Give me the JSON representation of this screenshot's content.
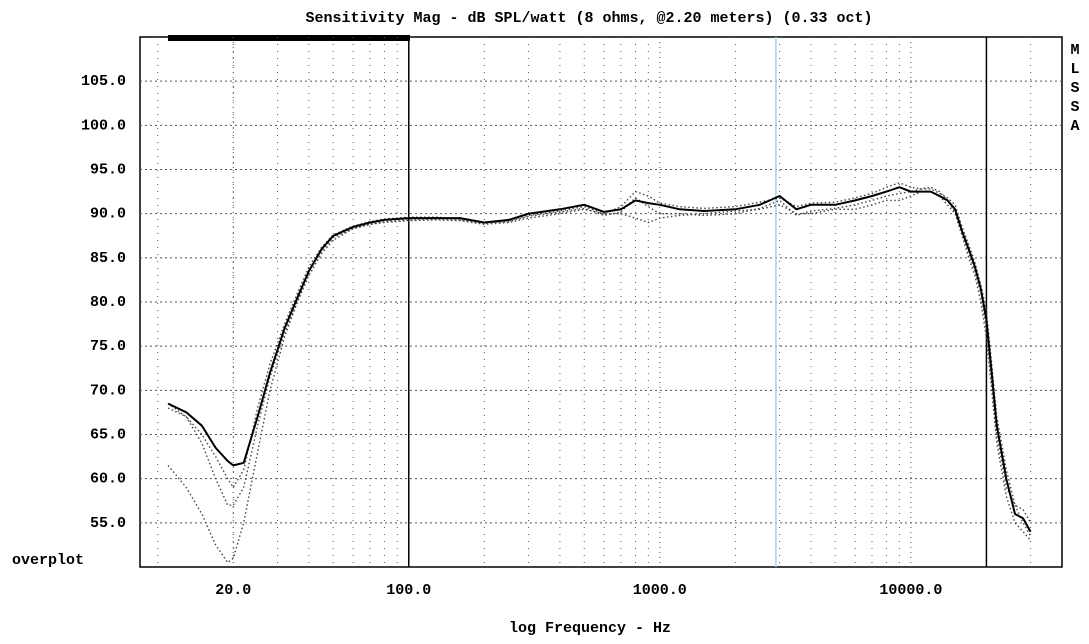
{
  "chart_data": {
    "type": "line",
    "title": "Sensitivity Mag - dB SPL/watt (8 ohms, @2.20 meters) (0.33 oct)",
    "xlabel": "log Frequency - Hz",
    "side_label": [
      "M",
      "L",
      "S",
      "S",
      "A"
    ],
    "corner_label": "overplot",
    "xscale": "log",
    "xlim": [
      8.5,
      40000
    ],
    "ylim": [
      50,
      110
    ],
    "xticks": [
      {
        "value": 20,
        "label": "20.0"
      },
      {
        "value": 100,
        "label": "100.0"
      },
      {
        "value": 1000,
        "label": "1000.0"
      },
      {
        "value": 10000,
        "label": "10000.0"
      }
    ],
    "yticks": [
      {
        "value": 55,
        "label": "55.0"
      },
      {
        "value": 60,
        "label": "60.0"
      },
      {
        "value": 65,
        "label": "65.0"
      },
      {
        "value": 70,
        "label": "70.0"
      },
      {
        "value": 75,
        "label": "75.0"
      },
      {
        "value": 80,
        "label": "80.0"
      },
      {
        "value": 85,
        "label": "85.0"
      },
      {
        "value": 90,
        "label": "90.0"
      },
      {
        "value": 95,
        "label": "95.0"
      },
      {
        "value": 100,
        "label": "100.0"
      },
      {
        "value": 105,
        "label": "105.0"
      }
    ],
    "xgrid": [
      10,
      20,
      30,
      40,
      50,
      60,
      70,
      80,
      90,
      200,
      300,
      400,
      500,
      600,
      700,
      800,
      900,
      2000,
      3000,
      4000,
      5000,
      6000,
      7000,
      8000,
      9000,
      20000,
      30000
    ],
    "grid": true,
    "vlines": [
      {
        "value": 100,
        "color": "#000000"
      },
      {
        "value": 20000,
        "color": "#000000"
      },
      {
        "value": 2900,
        "color": "#8fdcec"
      }
    ],
    "x": [
      11,
      13,
      15,
      17,
      19,
      20,
      22,
      25,
      28,
      32,
      36,
      40,
      45,
      50,
      60,
      70,
      80,
      100,
      130,
      160,
      200,
      250,
      300,
      400,
      500,
      600,
      700,
      800,
      900,
      1000,
      1200,
      1500,
      2000,
      2500,
      3000,
      3500,
      4000,
      5000,
      6000,
      7000,
      8000,
      9000,
      10000,
      11000,
      12000,
      13000,
      14000,
      15000,
      16000,
      17000,
      18000,
      19000,
      20000,
      21000,
      22000,
      24000,
      26000,
      28000,
      30000
    ],
    "series": [
      {
        "color": "#000000",
        "style": "solid",
        "values": [
          68.5,
          67.5,
          66,
          63.5,
          62,
          61.5,
          61.8,
          67,
          72,
          77,
          80.5,
          83.5,
          86,
          87.5,
          88.5,
          89,
          89.3,
          89.5,
          89.5,
          89.5,
          89,
          89.3,
          90,
          90.5,
          91,
          90.2,
          90.5,
          91.5,
          91.2,
          91,
          90.5,
          90.3,
          90.5,
          91,
          92,
          90.5,
          91,
          91,
          91.5,
          92,
          92.5,
          93,
          92.5,
          92.5,
          92.5,
          92,
          91.5,
          90.5,
          88,
          86,
          84,
          81.5,
          78,
          72,
          66,
          60,
          56,
          55.5,
          54
        ]
      },
      {
        "color": "#444444",
        "style": "dotted",
        "values": [
          61.5,
          59,
          56,
          52.5,
          50.5,
          51,
          55,
          63,
          70,
          76,
          80,
          83,
          85.5,
          87,
          88.3,
          88.8,
          89,
          89.2,
          89.3,
          89.2,
          88.8,
          89,
          89.5,
          90,
          90.5,
          90,
          90,
          89.5,
          89,
          89.5,
          89.8,
          90,
          90.3,
          90.5,
          91,
          90,
          90,
          90.5,
          90.5,
          91,
          91.5,
          91.5,
          92,
          92.5,
          92.5,
          92,
          91,
          90,
          87.5,
          85,
          83,
          80,
          76,
          70,
          64,
          58,
          55,
          54,
          53
        ]
      },
      {
        "color": "#444444",
        "style": "dotted",
        "values": [
          68,
          67,
          64,
          60,
          57,
          57,
          59,
          66,
          71.5,
          76.5,
          80,
          83.5,
          85.8,
          87.3,
          88.3,
          88.8,
          89.1,
          89.3,
          89.4,
          89.3,
          88.9,
          89.2,
          89.8,
          90.3,
          90.8,
          90,
          90.8,
          92.5,
          92,
          91.2,
          90.8,
          90.6,
          90.8,
          91.3,
          91.8,
          90.8,
          91.2,
          91.3,
          91.8,
          92.3,
          93,
          93.5,
          93,
          92.8,
          92.8,
          92.3,
          91.8,
          91,
          88.5,
          86.5,
          84.5,
          82,
          79,
          73,
          67,
          61,
          57,
          56.5,
          55
        ]
      },
      {
        "color": "#444444",
        "style": "dotted",
        "values": [
          68.5,
          67,
          65,
          62.5,
          60,
          59,
          61,
          68,
          73,
          77.5,
          81,
          84,
          86.2,
          87.6,
          88.6,
          89.1,
          89.4,
          89.6,
          89.6,
          89.4,
          89,
          89.1,
          89.7,
          90.2,
          90.6,
          89.8,
          90.2,
          91.8,
          90.8,
          90,
          90,
          89.8,
          90,
          90.6,
          91.5,
          89.8,
          90.3,
          90.6,
          91,
          91.5,
          92,
          92.3,
          92.5,
          92.8,
          93,
          92.5,
          91.5,
          90.2,
          87.8,
          85.5,
          83.5,
          81,
          77,
          71,
          65,
          59,
          57,
          55,
          53.5
        ]
      }
    ]
  }
}
